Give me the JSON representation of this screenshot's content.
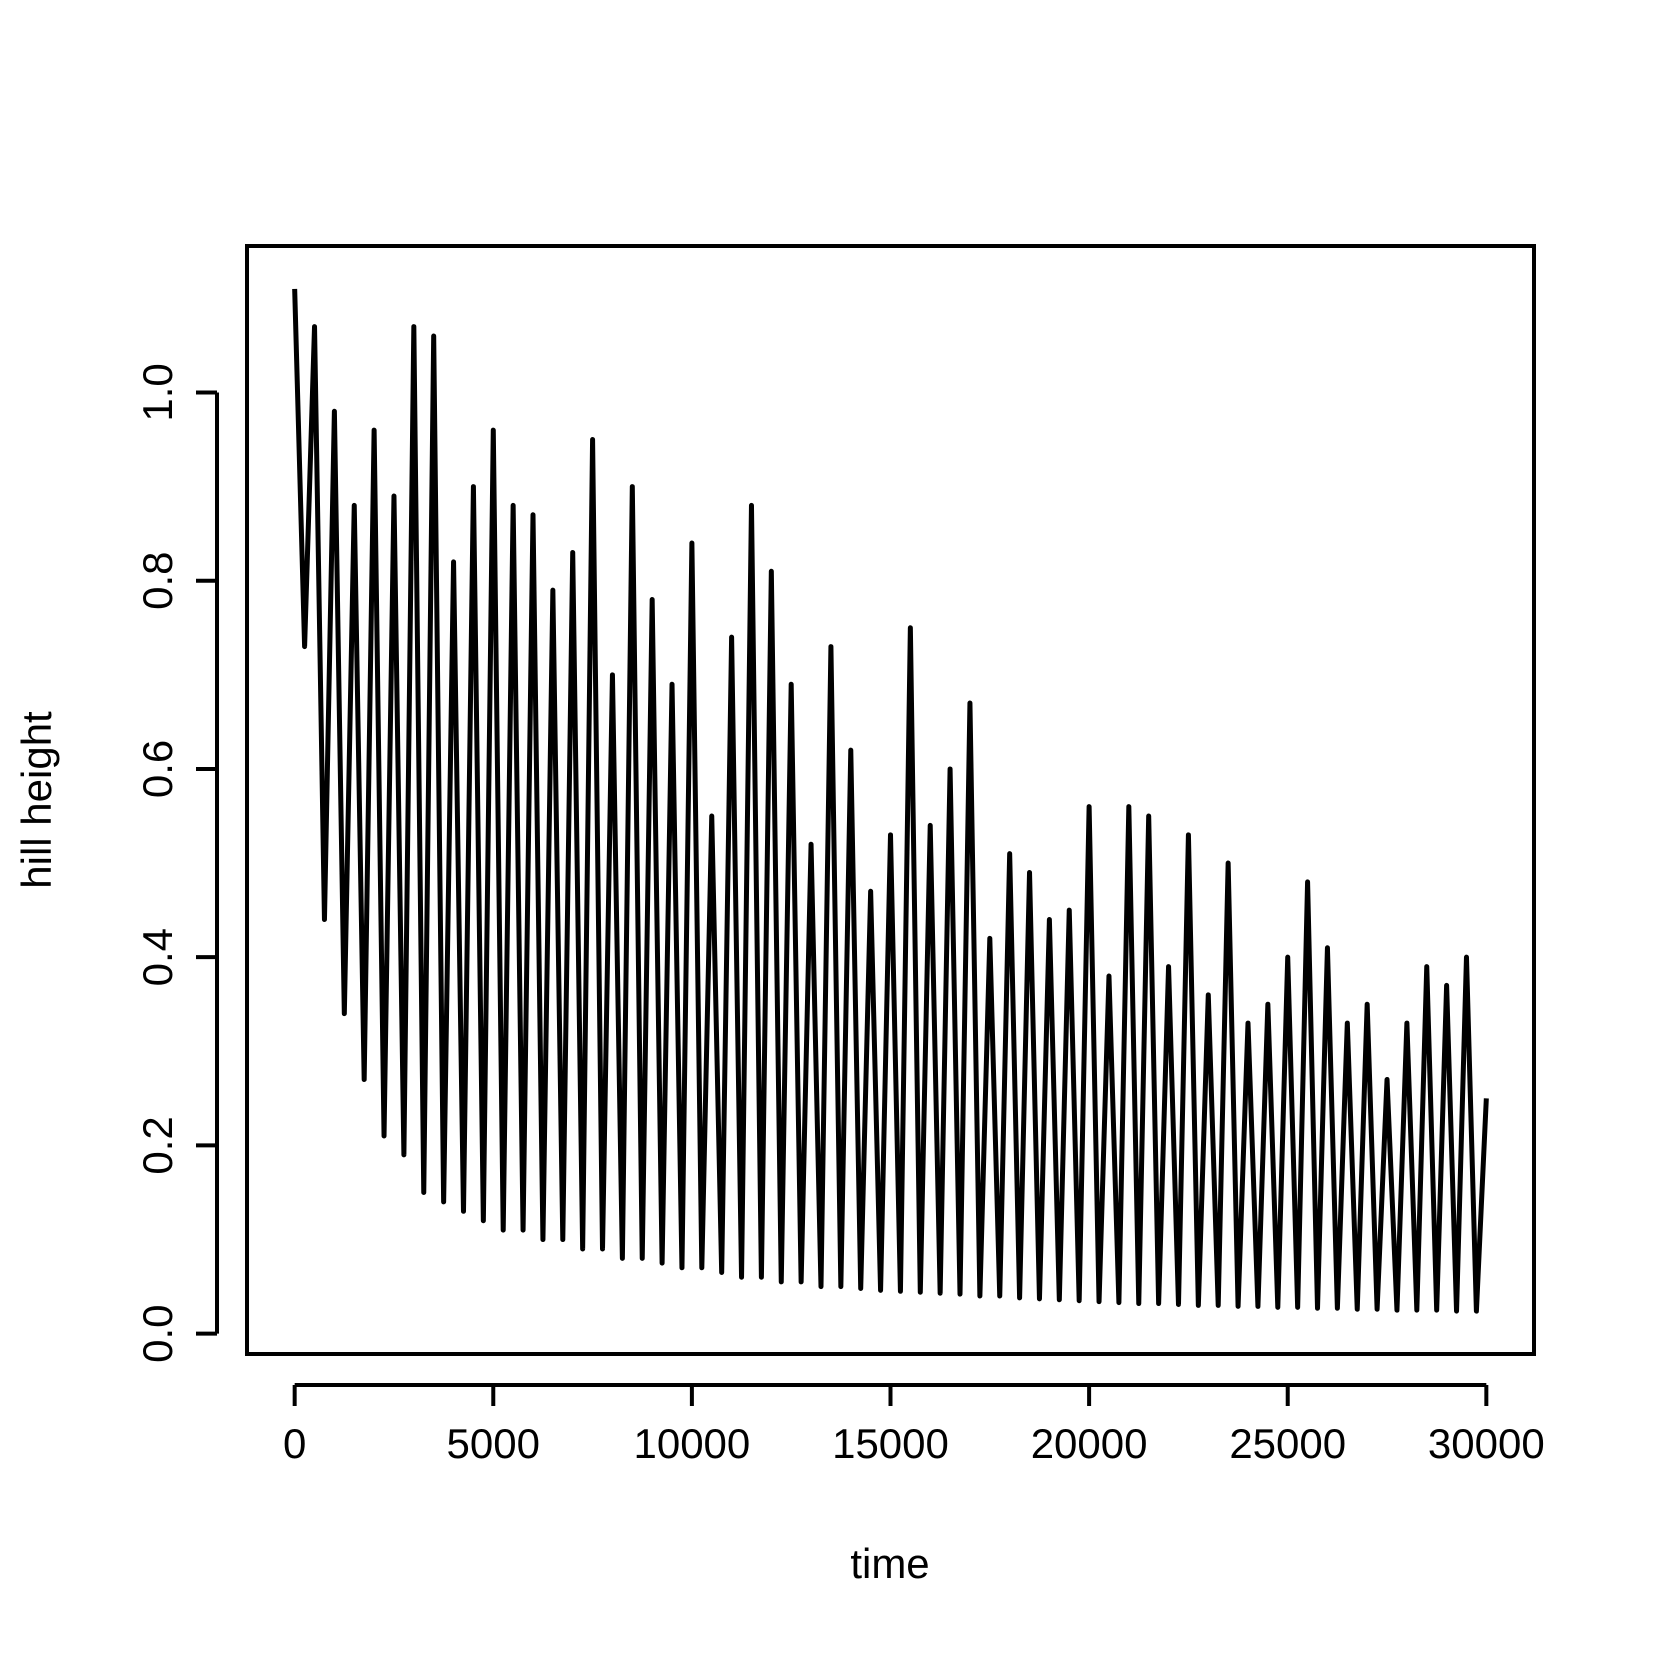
{
  "chart_data": {
    "type": "line",
    "x_label": "time",
    "y_label": "hill height",
    "color": "#000000",
    "x": [
      0,
      250,
      500,
      750,
      1000,
      1250,
      1500,
      1750,
      2000,
      2250,
      2500,
      2750,
      3000,
      3250,
      3500,
      3750,
      4000,
      4250,
      4500,
      4750,
      5000,
      5250,
      5500,
      5750,
      6000,
      6250,
      6500,
      6750,
      7000,
      7250,
      7500,
      7750,
      8000,
      8250,
      8500,
      8750,
      9000,
      9250,
      9500,
      9750,
      10000,
      10250,
      10500,
      10750,
      11000,
      11250,
      11500,
      11750,
      12000,
      12250,
      12500,
      12750,
      13000,
      13250,
      13500,
      13750,
      14000,
      14250,
      14500,
      14750,
      15000,
      15250,
      15500,
      15750,
      16000,
      16250,
      16500,
      16750,
      17000,
      17250,
      17500,
      17750,
      18000,
      18250,
      18500,
      18750,
      19000,
      19250,
      19500,
      19750,
      20000,
      20250,
      20500,
      20750,
      21000,
      21250,
      21500,
      21750,
      22000,
      22250,
      22500,
      22750,
      23000,
      23250,
      23500,
      23750,
      24000,
      24250,
      24500,
      24750,
      25000,
      25250,
      25500,
      25750,
      26000,
      26250,
      26500,
      26750,
      27000,
      27250,
      27500,
      27750,
      28000,
      28250,
      28500,
      28750,
      29000,
      29250,
      29500,
      29750,
      30000
    ],
    "values": [
      1.11,
      0.73,
      1.07,
      0.44,
      0.98,
      0.34,
      0.88,
      0.27,
      0.96,
      0.21,
      0.89,
      0.19,
      1.07,
      0.15,
      1.06,
      0.14,
      0.82,
      0.13,
      0.9,
      0.12,
      0.96,
      0.11,
      0.88,
      0.11,
      0.87,
      0.1,
      0.79,
      0.1,
      0.83,
      0.09,
      0.95,
      0.09,
      0.7,
      0.08,
      0.9,
      0.08,
      0.78,
      0.075,
      0.69,
      0.07,
      0.84,
      0.07,
      0.55,
      0.065,
      0.74,
      0.06,
      0.88,
      0.06,
      0.81,
      0.055,
      0.69,
      0.055,
      0.52,
      0.05,
      0.73,
      0.05,
      0.62,
      0.048,
      0.47,
      0.046,
      0.53,
      0.045,
      0.75,
      0.044,
      0.54,
      0.043,
      0.6,
      0.042,
      0.67,
      0.04,
      0.42,
      0.04,
      0.51,
      0.038,
      0.49,
      0.037,
      0.44,
      0.036,
      0.45,
      0.035,
      0.56,
      0.034,
      0.38,
      0.033,
      0.56,
      0.032,
      0.55,
      0.032,
      0.39,
      0.031,
      0.53,
      0.03,
      0.36,
      0.03,
      0.5,
      0.029,
      0.33,
      0.029,
      0.35,
      0.028,
      0.4,
      0.028,
      0.48,
      0.027,
      0.41,
      0.027,
      0.33,
      0.026,
      0.35,
      0.026,
      0.27,
      0.025,
      0.33,
      0.025,
      0.39,
      0.025,
      0.37,
      0.024,
      0.4,
      0.024,
      0.25
    ],
    "xlim": [
      -1200,
      31200
    ],
    "xticks": [
      0,
      5000,
      10000,
      15000,
      20000,
      25000,
      30000
    ],
    "ylim": [
      -0.0216,
      1.1556
    ],
    "yticks": [
      {
        "value": 0,
        "label": "0.0"
      },
      0.2,
      0.4,
      0.6,
      0.8,
      {
        "value": 1,
        "label": "1.0"
      }
    ],
    "grid": false
  }
}
